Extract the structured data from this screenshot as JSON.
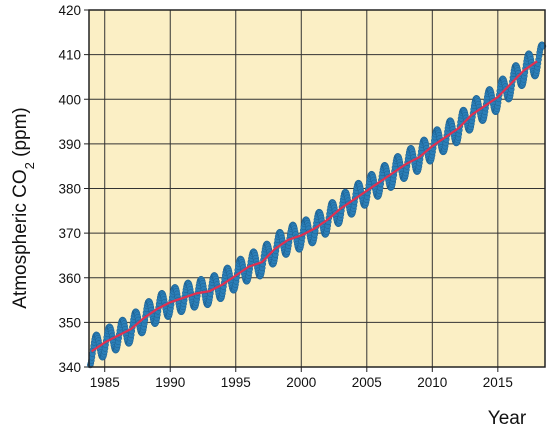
{
  "chart_data": {
    "type": "line",
    "title": "",
    "xlabel": "Year",
    "ylabel": "Atmospheric CO2 (ppm)",
    "ylabel_main": "Atmospheric CO",
    "ylabel_sub": "2",
    "ylabel_tail": " (ppm)",
    "xlim": [
      1983.8,
      2018.6
    ],
    "ylim": [
      340,
      420
    ],
    "x_ticks": [
      1985,
      1990,
      1995,
      2000,
      2005,
      2010,
      2015
    ],
    "y_ticks": [
      340,
      350,
      360,
      370,
      380,
      390,
      400,
      410,
      420
    ],
    "x_tick_labels": [
      "1985",
      "1990",
      "1995",
      "2000",
      "2005",
      "2010",
      "2015"
    ],
    "y_tick_labels": [
      "340",
      "350",
      "360",
      "370",
      "380",
      "390",
      "400",
      "410",
      "420"
    ],
    "grid": true,
    "legend": "none",
    "background_color": "#fbefc5",
    "series": [
      {
        "style": "dots",
        "color": "#2b7fb8",
        "description": "monthly measurements with seasonal cycle (~±3 ppm around trend)",
        "x": [
          1984.0,
          1985.0,
          1986.0,
          1987.0,
          1988.0,
          1989.0,
          1990.0,
          1991.0,
          1992.0,
          1993.0,
          1994.0,
          1995.0,
          1996.0,
          1997.0,
          1998.0,
          1999.0,
          2000.0,
          2001.0,
          2002.0,
          2003.0,
          2004.0,
          2005.0,
          2006.0,
          2007.0,
          2008.0,
          2009.0,
          2010.0,
          2011.0,
          2012.0,
          2013.0,
          2014.0,
          2015.0,
          2016.0,
          2017.0,
          2018.0
        ],
        "values": [
          343.5,
          345.5,
          347.0,
          348.5,
          351.0,
          353.0,
          354.5,
          355.5,
          356.5,
          357.0,
          358.5,
          360.5,
          362.5,
          363.5,
          366.5,
          368.5,
          369.5,
          371.0,
          373.0,
          375.5,
          377.5,
          379.5,
          381.5,
          383.5,
          385.5,
          387.0,
          389.5,
          391.5,
          393.5,
          396.5,
          398.5,
          400.5,
          403.5,
          406.5,
          408.5
        ],
        "seasonal_amplitude": 3
      },
      {
        "style": "line",
        "color": "#e03050",
        "description": "deseasonalized trend",
        "x": [
          1984.0,
          1985.0,
          1986.0,
          1987.0,
          1988.0,
          1989.0,
          1990.0,
          1991.0,
          1992.0,
          1993.0,
          1994.0,
          1995.0,
          1996.0,
          1997.0,
          1998.0,
          1999.0,
          2000.0,
          2001.0,
          2002.0,
          2003.0,
          2004.0,
          2005.0,
          2006.0,
          2007.0,
          2008.0,
          2009.0,
          2010.0,
          2011.0,
          2012.0,
          2013.0,
          2014.0,
          2015.0,
          2016.0,
          2017.0,
          2018.0
        ],
        "values": [
          343.5,
          345.5,
          347.0,
          348.5,
          351.0,
          353.0,
          354.5,
          355.5,
          356.5,
          357.0,
          358.5,
          360.5,
          362.5,
          363.5,
          366.5,
          368.5,
          369.5,
          371.0,
          373.0,
          375.5,
          377.5,
          379.5,
          381.5,
          383.5,
          385.5,
          387.0,
          389.5,
          391.5,
          393.5,
          396.5,
          398.5,
          400.5,
          403.5,
          406.5,
          408.5
        ]
      }
    ]
  }
}
